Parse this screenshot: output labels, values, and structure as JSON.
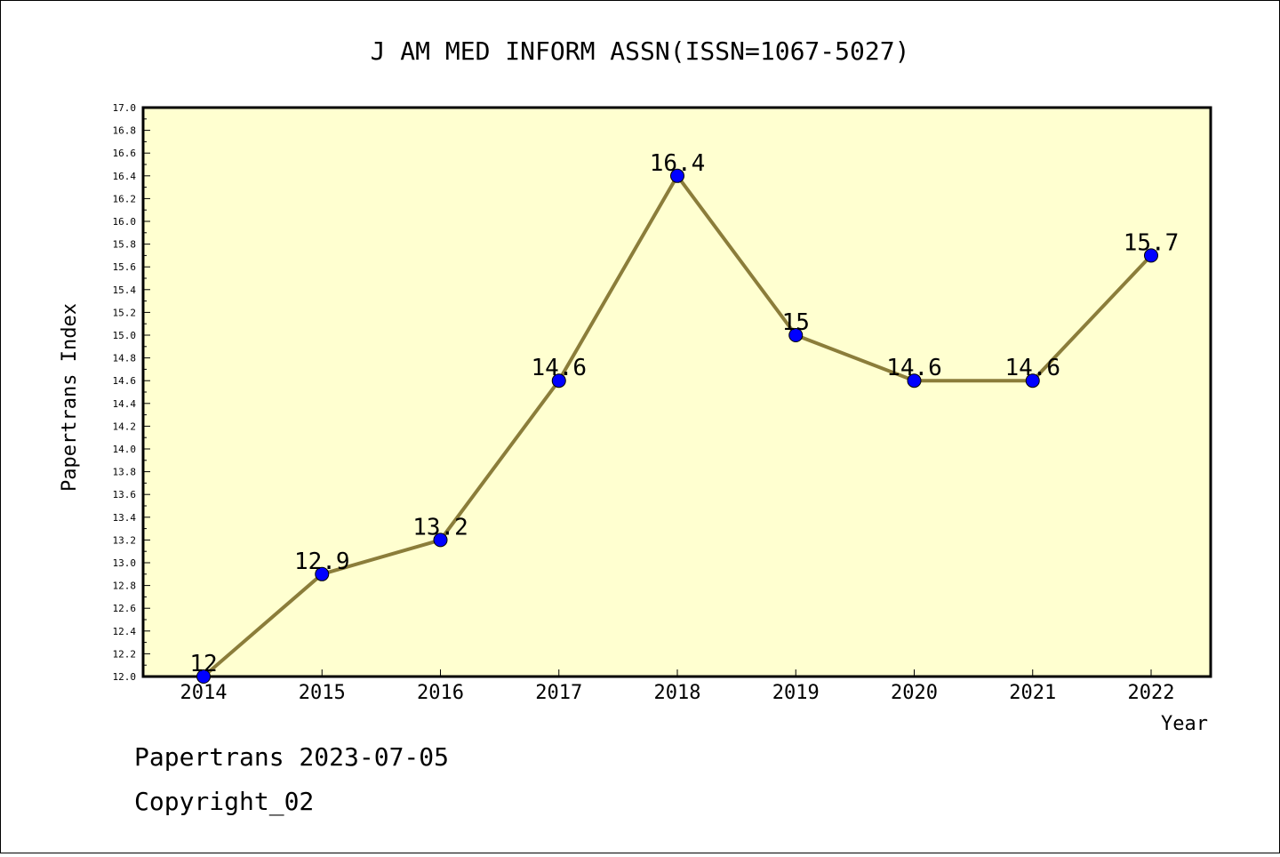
{
  "colors": {
    "plot_background": "#ffffd0",
    "line": "#8b7d3a",
    "marker": "#0000ff",
    "axis": "#000000"
  },
  "chart_data": {
    "type": "line",
    "title": "J AM MED INFORM ASSN(ISSN=1067-5027)",
    "xlabel": "Year",
    "ylabel": "Papertrans Index",
    "ylim": [
      12.0,
      17.0
    ],
    "ytick_step": 0.2,
    "grid": false,
    "categories": [
      "2014",
      "2015",
      "2016",
      "2017",
      "2018",
      "2019",
      "2020",
      "2021",
      "2022"
    ],
    "series": [
      {
        "values": [
          12,
          12.9,
          13.2,
          14.6,
          16.4,
          15,
          14.6,
          14.6,
          15.7
        ],
        "data_labels": [
          "12",
          "12.9",
          "13.2",
          "14.6",
          "16.4",
          "15",
          "14.6",
          "14.6",
          "15.7"
        ]
      }
    ]
  },
  "footer": {
    "date_line": "Papertrans 2023-07-05",
    "copyright": "Copyright_02"
  }
}
